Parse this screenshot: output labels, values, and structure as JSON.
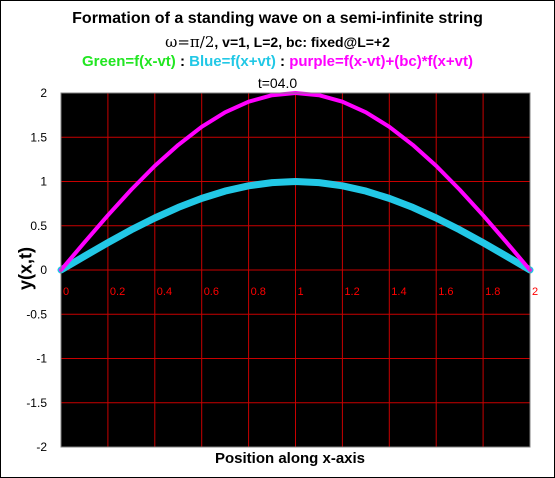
{
  "chart_data": {
    "type": "line",
    "title": "Formation of a standing wave on a semi-infinite string",
    "subtitle": {
      "omega_part": "ω=π/2",
      "rest": ", v=1, L=2, bc: fixed@L=+2"
    },
    "legend": [
      {
        "text": "Green=f(x-vt)",
        "color": "#22e622"
      },
      {
        "text": " : ",
        "color": "#000000"
      },
      {
        "text": "Blue=f(x+vt)",
        "color": "#22c8e6"
      },
      {
        "text": " : ",
        "color": "#000000"
      },
      {
        "text": "purple=f(x-vt)+(bc)*f(x+vt)",
        "color": "#ff00ff"
      }
    ],
    "time_label": "t=04.0",
    "xlabel": "Position along x-axis",
    "ylabel": "y(x,t)",
    "xlim": [
      0,
      2
    ],
    "ylim": [
      -2,
      2
    ],
    "x_ticks": [
      "0",
      "0.2",
      "0.4",
      "0.6",
      "0.8",
      "1",
      "1.2",
      "1.4",
      "1.6",
      "1.8",
      "2"
    ],
    "y_ticks": [
      "2",
      "1.5",
      "1",
      "0.5",
      "0",
      "-0.5",
      "-1",
      "-1.5",
      "-2"
    ],
    "grid": true,
    "colors": {
      "plot_background": "#000000",
      "grid": "#c80000",
      "x_tick_labels": "#ff0000",
      "y_tick_labels": "#000000"
    },
    "series": [
      {
        "color": "#22c8e6",
        "x": [
          0,
          0.1,
          0.2,
          0.3,
          0.4,
          0.5,
          0.6,
          0.7,
          0.8,
          0.9,
          1.0,
          1.1,
          1.2,
          1.3,
          1.4,
          1.5,
          1.6,
          1.7,
          1.8,
          1.9,
          2.0
        ],
        "values": [
          0,
          0.156,
          0.309,
          0.454,
          0.588,
          0.707,
          0.809,
          0.891,
          0.951,
          0.988,
          1.0,
          0.988,
          0.951,
          0.891,
          0.809,
          0.707,
          0.588,
          0.454,
          0.309,
          0.156,
          0
        ]
      },
      {
        "color": "#ff00ff",
        "x": [
          0,
          0.1,
          0.2,
          0.3,
          0.4,
          0.5,
          0.6,
          0.7,
          0.8,
          0.9,
          1.0,
          1.1,
          1.2,
          1.3,
          1.4,
          1.5,
          1.6,
          1.7,
          1.8,
          1.9,
          2.0
        ],
        "values": [
          0,
          0.313,
          0.618,
          0.908,
          1.176,
          1.414,
          1.618,
          1.782,
          1.902,
          1.975,
          2.0,
          1.975,
          1.902,
          1.782,
          1.618,
          1.414,
          1.176,
          0.908,
          0.618,
          0.313,
          0
        ]
      }
    ]
  }
}
